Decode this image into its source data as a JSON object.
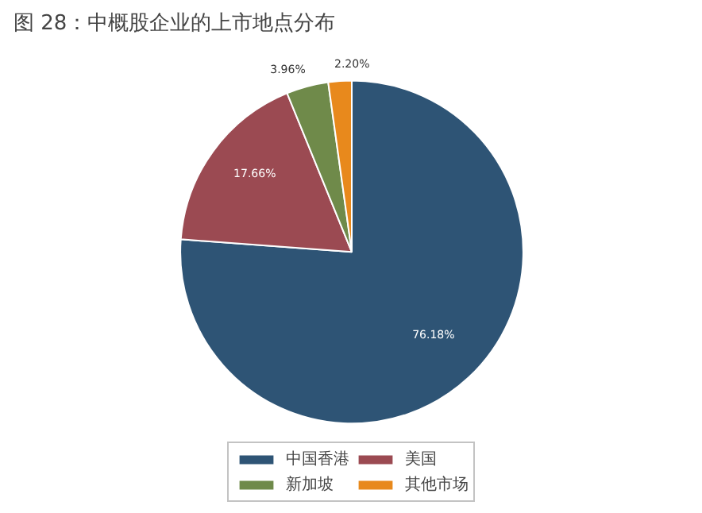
{
  "chart_data": {
    "type": "pie",
    "title": "图 28：中概股企业的上市地点分布",
    "categories": [
      "中国香港",
      "美国",
      "新加坡",
      "其他市场"
    ],
    "values": [
      76.18,
      17.66,
      3.96,
      2.2
    ],
    "colors": [
      "#2e5475",
      "#9b4a52",
      "#6f8a4a",
      "#e8891c"
    ],
    "value_labels": [
      "76.18%",
      "17.66%",
      "3.96%",
      "2.20%"
    ],
    "legend": "bottom"
  }
}
